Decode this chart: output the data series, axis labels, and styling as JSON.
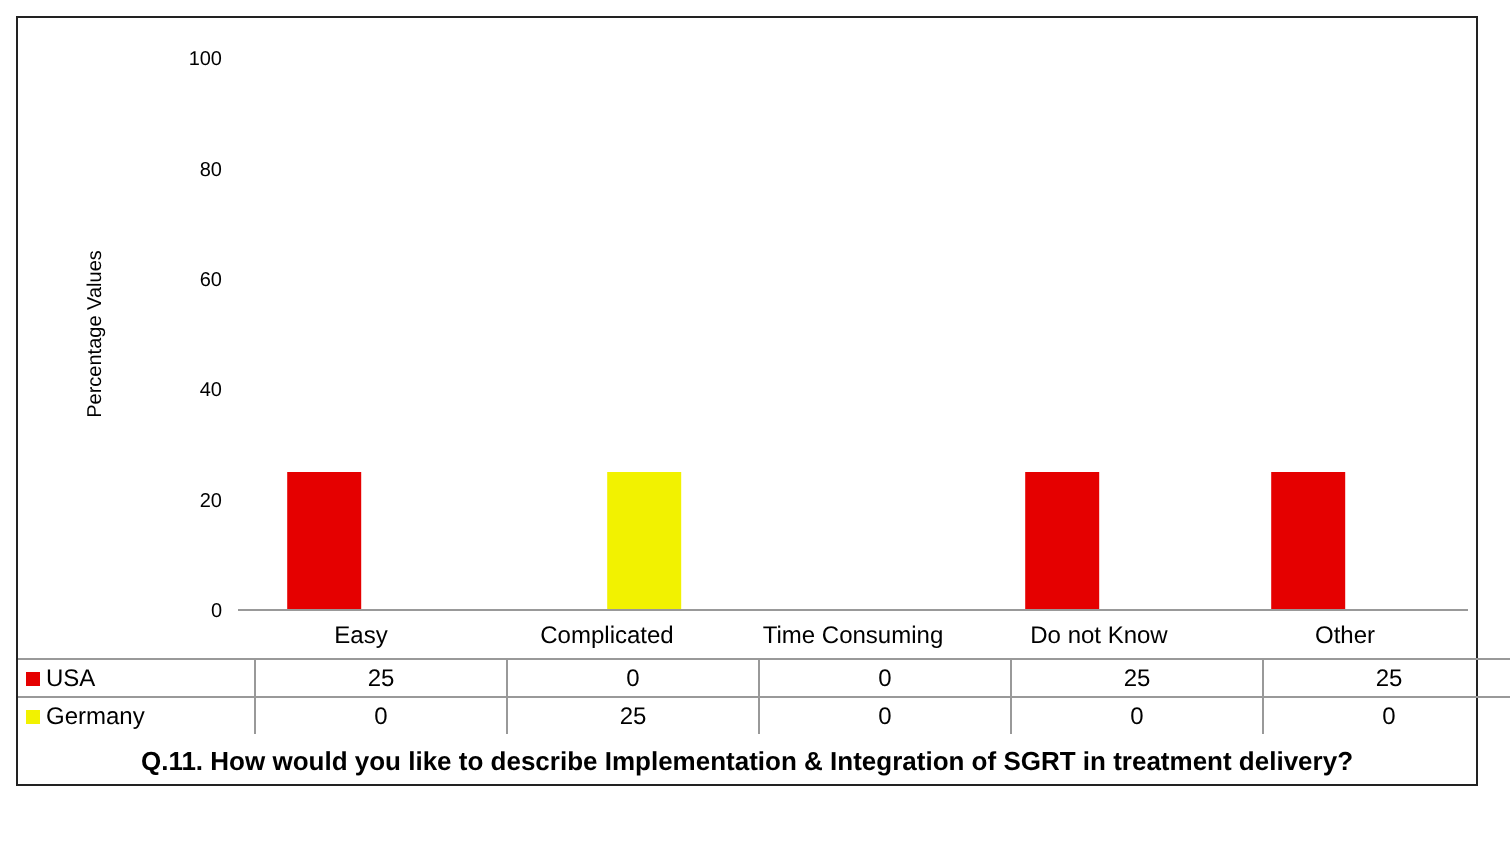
{
  "chart_data": {
    "type": "bar",
    "title": "Q.11. How would you like to describe Implementation & Integration of SGRT in treatment delivery?",
    "ylabel": "Percentage Values",
    "categories": [
      "Easy",
      "Complicated",
      "Time Consuming",
      "Do not Know",
      "Other"
    ],
    "series": [
      {
        "name": "USA",
        "color": "#e50000",
        "values": [
          25,
          0,
          0,
          25,
          25
        ]
      },
      {
        "name": "Germany",
        "color": "#f2f200",
        "values": [
          0,
          25,
          0,
          0,
          0
        ]
      }
    ],
    "ylim": [
      0,
      100
    ],
    "yticks": [
      0,
      20,
      40,
      60,
      80,
      100
    ],
    "legend": "bottom left",
    "data_labels": true
  }
}
